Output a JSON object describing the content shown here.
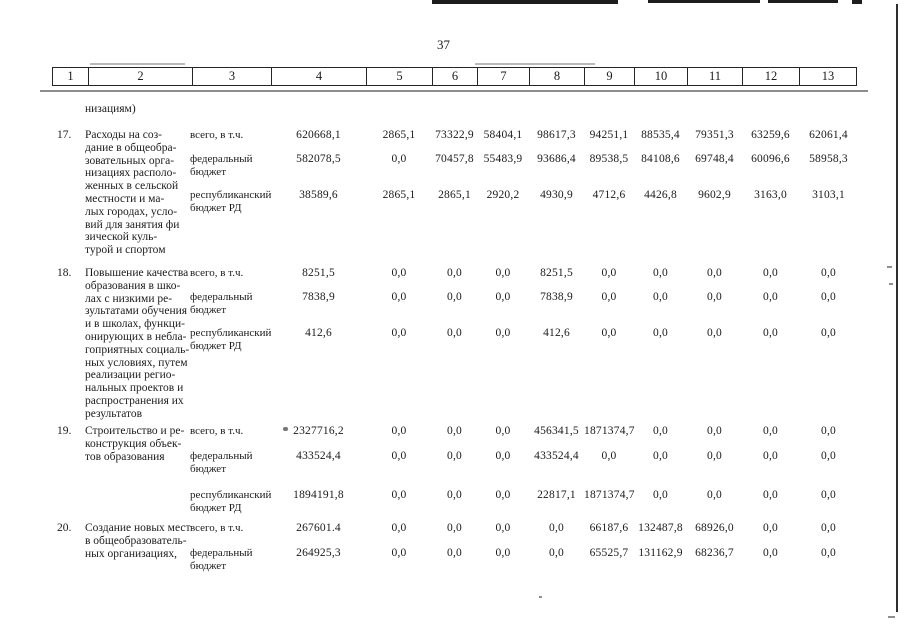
{
  "page_number": "37",
  "header_columns": [
    "1",
    "2",
    "3",
    "4",
    "5",
    "6",
    "7",
    "8",
    "9",
    "10",
    "11",
    "12",
    "13"
  ],
  "carryover_text": "низациям)",
  "rows": [
    {
      "num": "17.",
      "title_lines": [
        "Расходы на соз-",
        "дание в общеобра-",
        "зовательных орга-",
        "низациях располо-",
        "женных в сельской",
        "местности и ма-",
        "лых городах, усло-",
        "вий для занятия   фи",
        "зической   куль-",
        "турой и спортом"
      ],
      "entries": [
        {
          "label_lines": [
            "всего, в т.ч."
          ],
          "values": [
            "620668,1",
            "2865,1",
            "73322,9",
            "58404,1",
            "98617,3",
            "94251,1",
            "88535,4",
            "79351,3",
            "63259,6",
            "62061,4"
          ]
        },
        {
          "label_lines": [
            "федеральный",
            "бюджет"
          ],
          "values": [
            "582078,5",
            "0,0",
            "70457,8",
            "55483,9",
            "93686,4",
            "89538,5",
            "84108,6",
            "69748,4",
            "60096,6",
            "58958,3"
          ]
        },
        {
          "label_lines": [
            "республиканский",
            "бюджет РД"
          ],
          "values": [
            "38589,6",
            "2865,1",
            "2865,1",
            "2920,2",
            "4930,9",
            "4712,6",
            "4426,8",
            "9602,9",
            "3163,0",
            "3103,1"
          ]
        }
      ]
    },
    {
      "num": "18.",
      "title_lines": [
        "Повышение качества",
        "образования в шко-",
        "лах с низкими ре-",
        "зультатами обучения",
        "и в школах, функци-",
        "онирующих в небла-",
        "гоприятных социаль-",
        "ных условиях, путем",
        "реализации регио-",
        "нальных проектов и",
        "распространения их",
        "результатов"
      ],
      "entries": [
        {
          "label_lines": [
            "всего, в т.ч."
          ],
          "values": [
            "8251,5",
            "0,0",
            "0,0",
            "0,0",
            "8251,5",
            "0,0",
            "0,0",
            "0,0",
            "0,0",
            "0,0"
          ]
        },
        {
          "label_lines": [
            "федеральный",
            "бюджет"
          ],
          "values": [
            "7838,9",
            "0,0",
            "0,0",
            "0,0",
            "7838,9",
            "0,0",
            "0,0",
            "0,0",
            "0,0",
            "0,0"
          ]
        },
        {
          "label_lines": [
            "республиканский",
            "бюджет РД"
          ],
          "values": [
            "412,6",
            "0,0",
            "0,0",
            "0,0",
            "412,6",
            "0,0",
            "0,0",
            "0,0",
            "0,0",
            "0,0"
          ]
        }
      ]
    },
    {
      "num": "19.",
      "title_lines": [
        "Строительство и ре-",
        "конструкция объек-",
        "тов образования"
      ],
      "entries": [
        {
          "label_lines": [
            "всего, в т.ч."
          ],
          "values": [
            "2327716,2",
            "0,0",
            "0,0",
            "0,0",
            "456341,5",
            "1871374,7",
            "0,0",
            "0,0",
            "0,0",
            "0,0"
          ]
        },
        {
          "label_lines": [
            "федеральный",
            "бюджет"
          ],
          "values": [
            "433524,4",
            "0,0",
            "0,0",
            "0,0",
            "433524,4",
            "0,0",
            "0,0",
            "0,0",
            "0,0",
            "0,0"
          ]
        },
        {
          "label_lines": [
            "республиканский",
            "бюджет РД"
          ],
          "values": [
            "1894191,8",
            "0,0",
            "0,0",
            "0,0",
            "22817,1",
            "1871374,7",
            "0,0",
            "0,0",
            "0,0",
            "0,0"
          ]
        }
      ]
    },
    {
      "num": "20.",
      "title_lines": [
        "Создание новых мест",
        "в общеобразователь-",
        "ных организациях,"
      ],
      "entries": [
        {
          "label_lines": [
            "всего, в т.ч."
          ],
          "values": [
            "267601.4",
            "0,0",
            "0,0",
            "0,0",
            "0,0",
            "66187,6",
            "132487,8",
            "68926,0",
            "0,0",
            "0,0"
          ]
        },
        {
          "label_lines": [
            "федеральный",
            "бюджет"
          ],
          "values": [
            "264925,3",
            "0,0",
            "0,0",
            "0,0",
            "0,0",
            "65525,7",
            "131162,9",
            "68236,7",
            "0,0",
            "0,0"
          ]
        }
      ]
    }
  ]
}
